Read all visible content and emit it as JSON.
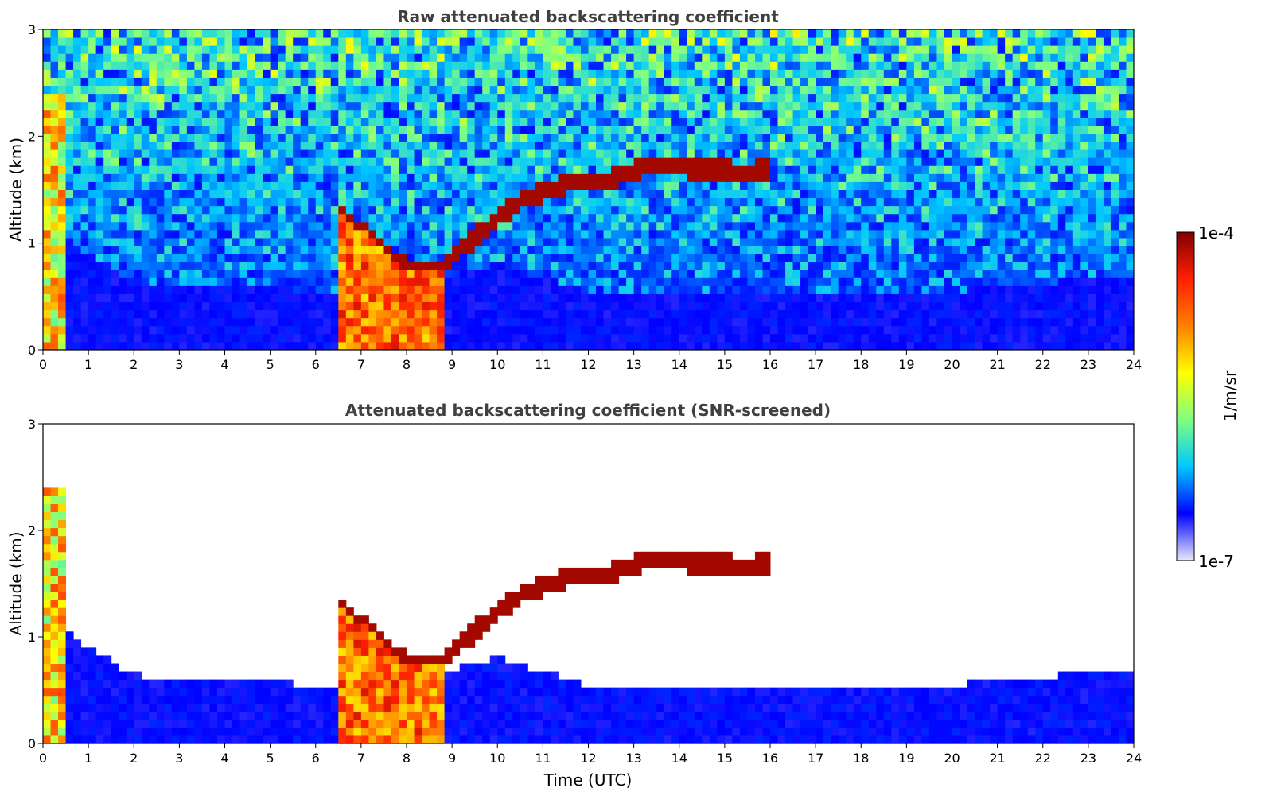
{
  "chart_data": [
    {
      "type": "heatmap",
      "title": "Raw attenuated backscattering coefficient",
      "xlabel": "",
      "ylabel": "Altitude (km)",
      "xlim": [
        0,
        24
      ],
      "ylim": [
        0,
        3
      ],
      "xticks": [
        "0",
        "1",
        "2",
        "3",
        "4",
        "5",
        "6",
        "7",
        "8",
        "9",
        "10",
        "11",
        "12",
        "13",
        "14",
        "15",
        "16",
        "17",
        "18",
        "19",
        "20",
        "21",
        "22",
        "23",
        "24"
      ],
      "yticks": [
        "0",
        "1",
        "2",
        "3"
      ],
      "screened": false,
      "features": {
        "boundary_layer_top_km": [
          [
            0,
            1.3
          ],
          [
            1,
            0.9
          ],
          [
            2,
            0.65
          ],
          [
            3,
            0.6
          ],
          [
            4,
            0.6
          ],
          [
            6,
            0.55
          ],
          [
            8,
            0.6
          ],
          [
            10,
            0.8
          ],
          [
            12,
            0.55
          ],
          [
            16,
            0.5
          ],
          [
            20,
            0.55
          ],
          [
            24,
            0.7
          ]
        ],
        "cloud_layer_km": [
          [
            0.3,
            0.1
          ],
          [
            6.6,
            1.25
          ],
          [
            7.2,
            1.05
          ],
          [
            8.0,
            0.75
          ],
          [
            8.7,
            0.75
          ],
          [
            9.5,
            1.05
          ],
          [
            10.5,
            1.4
          ],
          [
            11.5,
            1.55
          ],
          [
            12.5,
            1.6
          ],
          [
            13.5,
            1.75
          ],
          [
            14.2,
            1.7
          ],
          [
            14.8,
            1.7
          ],
          [
            15.5,
            1.65
          ],
          [
            15.9,
            1.7
          ]
        ],
        "precipitation_shaft_hours": [
          6.55,
          8.8
        ]
      }
    },
    {
      "type": "heatmap",
      "title": "Attenuated backscattering coefficient (SNR-screened)",
      "xlabel": "Time (UTC)",
      "ylabel": "Altitude (km)",
      "xlim": [
        0,
        24
      ],
      "ylim": [
        0,
        3
      ],
      "xticks": [
        "0",
        "1",
        "2",
        "3",
        "4",
        "5",
        "6",
        "7",
        "8",
        "9",
        "10",
        "11",
        "12",
        "13",
        "14",
        "15",
        "16",
        "17",
        "18",
        "19",
        "20",
        "21",
        "22",
        "23",
        "24"
      ],
      "yticks": [
        "0",
        "1",
        "2",
        "3"
      ],
      "screened": true
    }
  ],
  "colorbar": {
    "max_label": "1e-4",
    "min_label": "1e-7",
    "unit_label": "1/m/sr",
    "scale": "log",
    "colormap": "jet",
    "colors": [
      "#e8e8f8",
      "#0000ff",
      "#00c8ff",
      "#80ff80",
      "#ffff00",
      "#ff8000",
      "#ff2000",
      "#800000"
    ]
  }
}
